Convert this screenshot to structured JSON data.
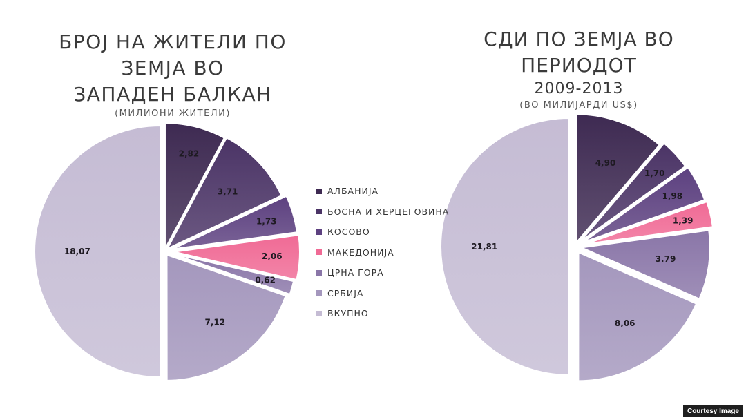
{
  "chart_data": [
    {
      "type": "pie",
      "title": "БРОЈ НА ЖИТЕЛИ ПО ЗЕМЈА ВО ЗАПАДЕН БАЛКАН",
      "subtitle": "(МИЛИОНИ ЖИТЕЛИ)",
      "slices": [
        {
          "label": "Албанија",
          "value": 2.82,
          "display": "2,82",
          "color": "#3e2a52"
        },
        {
          "label": "Босна и Херцеговина",
          "value": 3.71,
          "display": "3,71",
          "color": "#4b3466"
        },
        {
          "label": "Косово",
          "value": 1.73,
          "display": "1,73",
          "color": "#5d4180"
        },
        {
          "label": "Македонија",
          "value": 2.06,
          "display": "2,06",
          "color": "#f06a95"
        },
        {
          "label": "Црна Гора",
          "value": 0.62,
          "display": "0,62",
          "color": "#8a76a8"
        },
        {
          "label": "Србија",
          "value": 7.12,
          "display": "7,12",
          "color": "#a497bd"
        },
        {
          "label": "Вкупно",
          "value": 18.07,
          "display": "18,07",
          "color": "#c5bcd4"
        }
      ]
    },
    {
      "type": "pie",
      "title": "СДИ ПО ЗЕМЈА ВО ПЕРИОДОТ 2009-2013",
      "subtitle": "(ВО МИЛИЈАРДИ US$)",
      "slices": [
        {
          "label": "Албанија",
          "value": 4.9,
          "display": "4,90",
          "color": "#3e2a52"
        },
        {
          "label": "Босна и Херцеговина",
          "value": 1.7,
          "display": "1,70",
          "color": "#4b3466"
        },
        {
          "label": "Косово",
          "value": 1.98,
          "display": "1,98",
          "color": "#5d4180"
        },
        {
          "label": "Македонија",
          "value": 1.39,
          "display": "1,39",
          "color": "#f06a95"
        },
        {
          "label": "Црна Гора",
          "value": 3.79,
          "display": "3.79",
          "color": "#8a76a8"
        },
        {
          "label": "Србија",
          "value": 8.06,
          "display": "8,06",
          "color": "#a497bd"
        },
        {
          "label": "Вкупно",
          "value": 21.81,
          "display": "21,81",
          "color": "#c5bcd4"
        }
      ]
    }
  ],
  "left_title": {
    "line1": "БРОЈ НА ЖИТЕЛИ ПО ЗЕМЈА ВО",
    "line2": "ЗАПАДЕН БАЛКАН",
    "sub": "(МИЛИОНИ ЖИТЕЛИ)"
  },
  "right_title": {
    "line1": "СДИ ПО ЗЕМЈА ВО ПЕРИОДОТ",
    "line2": "2009-2013",
    "sub": "(ВО МИЛИЈАРДИ US$)"
  },
  "legend": [
    {
      "label": "Албанија",
      "color": "#3e2a52"
    },
    {
      "label": "Босна и Херцеговина",
      "color": "#4b3466"
    },
    {
      "label": "Косово",
      "color": "#5d4180"
    },
    {
      "label": "Македонија",
      "color": "#f06a95"
    },
    {
      "label": "Црна Гора",
      "color": "#8a76a8"
    },
    {
      "label": "Србија",
      "color": "#a497bd"
    },
    {
      "label": "Вкупно",
      "color": "#c5bcd4"
    }
  ],
  "credit": "Courtesy Image"
}
